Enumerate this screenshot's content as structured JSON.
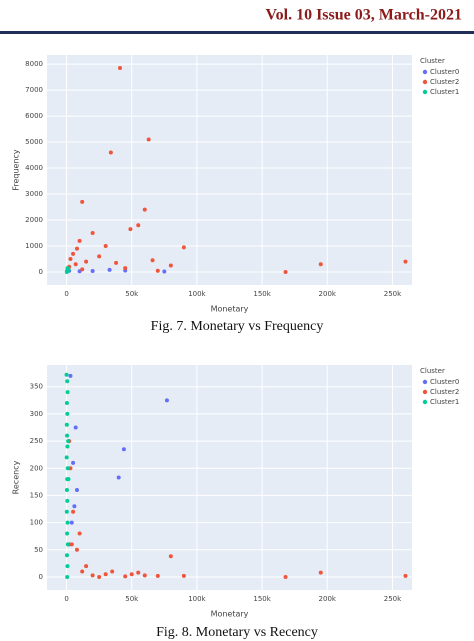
{
  "header": {
    "title": "Vol. 10 Issue 03, March-2021"
  },
  "chart_data": [
    {
      "type": "scatter",
      "caption": "Fig. 7. Monetary vs Frequency",
      "x_label": "Monetary",
      "y_label": "Frequency",
      "legend_title": "Cluster",
      "xlim": [
        -15000,
        265000
      ],
      "ylim": [
        -500,
        8350
      ],
      "xticks": [
        {
          "value": 0,
          "label": "0"
        },
        {
          "value": 50000,
          "label": "50k"
        },
        {
          "value": 100000,
          "label": "100k"
        },
        {
          "value": 150000,
          "label": "150k"
        },
        {
          "value": 200000,
          "label": "200k"
        },
        {
          "value": 250000,
          "label": "250k"
        }
      ],
      "yticks": [
        0,
        1000,
        2000,
        3000,
        4000,
        5000,
        6000,
        7000,
        8000
      ],
      "grid": true,
      "series": [
        {
          "name": "Cluster0",
          "color": "#636efa",
          "x": [
            2000,
            75000,
            33000,
            45000,
            10000,
            20000
          ],
          "values": [
            50,
            20,
            80,
            60,
            30,
            40
          ]
        },
        {
          "name": "Cluster2",
          "color": "#ef553b",
          "x": [
            41000,
            63000,
            34000,
            12000,
            60000,
            55000,
            49000,
            90000,
            80000,
            168000,
            195000,
            260000,
            38000,
            30000,
            20000,
            25000,
            10000,
            8000,
            5000,
            15000,
            3000,
            7000,
            45000,
            66000,
            70000,
            2000,
            12000
          ],
          "values": [
            7850,
            5100,
            4600,
            2700,
            2400,
            1800,
            1650,
            950,
            250,
            0,
            300,
            400,
            350,
            1000,
            1500,
            600,
            1200,
            900,
            700,
            400,
            500,
            300,
            150,
            450,
            50,
            200,
            100
          ]
        },
        {
          "name": "Cluster1",
          "color": "#00cc96",
          "x": [
            500,
            1000,
            300,
            800,
            1500,
            200
          ],
          "values": [
            50,
            100,
            20,
            150,
            80,
            0
          ]
        }
      ]
    },
    {
      "type": "scatter",
      "caption": "Fig. 8.  Monetary vs Recency",
      "x_label": "Monetary",
      "y_label": "Recency",
      "legend_title": "Cluster",
      "xlim": [
        -15000,
        265000
      ],
      "ylim": [
        -24,
        390
      ],
      "xticks": [
        {
          "value": 0,
          "label": "0"
        },
        {
          "value": 50000,
          "label": "50k"
        },
        {
          "value": 100000,
          "label": "100k"
        },
        {
          "value": 150000,
          "label": "150k"
        },
        {
          "value": 200000,
          "label": "200k"
        },
        {
          "value": 250000,
          "label": "250k"
        }
      ],
      "yticks": [
        0,
        50,
        100,
        150,
        200,
        250,
        300,
        350
      ],
      "grid": true,
      "series": [
        {
          "name": "Cluster0",
          "color": "#636efa",
          "x": [
            77000,
            44000,
            40000,
            7000,
            5000,
            3000,
            6000,
            4000,
            2000,
            8000
          ],
          "values": [
            325,
            235,
            183,
            275,
            210,
            370,
            130,
            100,
            60,
            160
          ]
        },
        {
          "name": "Cluster2",
          "color": "#ef553b",
          "x": [
            168000,
            195000,
            260000,
            80000,
            90000,
            60000,
            55000,
            50000,
            70000,
            35000,
            30000,
            20000,
            12000,
            8000,
            5000,
            3000,
            2000,
            10000,
            4000,
            15000,
            25000,
            45000
          ],
          "values": [
            0,
            8,
            2,
            38,
            2,
            3,
            8,
            5,
            2,
            10,
            5,
            3,
            10,
            50,
            120,
            200,
            250,
            80,
            60,
            20,
            0,
            1
          ]
        },
        {
          "name": "Cluster1",
          "color": "#00cc96",
          "x": [
            0,
            500,
            800,
            300,
            600,
            200,
            400,
            700,
            100,
            900,
            500,
            300,
            600,
            200,
            800,
            400,
            1000,
            300,
            700,
            500,
            1200,
            1500
          ],
          "values": [
            372,
            360,
            340,
            320,
            300,
            280,
            260,
            240,
            220,
            200,
            180,
            160,
            140,
            120,
            100,
            80,
            60,
            40,
            20,
            0,
            250,
            180
          ]
        }
      ]
    }
  ]
}
